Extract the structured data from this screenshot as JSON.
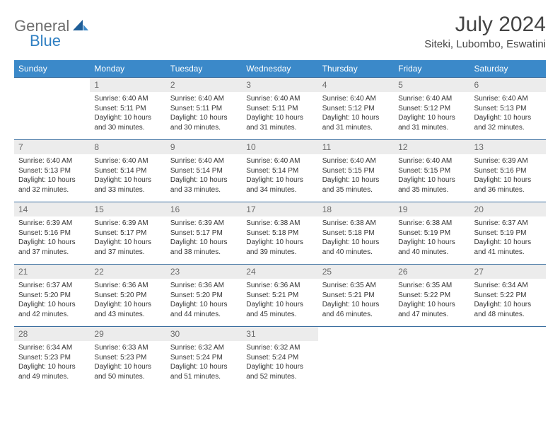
{
  "logo": {
    "text1": "General",
    "text2": "Blue"
  },
  "title": "July 2024",
  "location": "Siteki, Lubombo, Eswatini",
  "colors": {
    "header_bg": "#3b89c9",
    "header_text": "#ffffff",
    "daynum_bg": "#ececec",
    "daynum_text": "#6b6b6b",
    "row_border": "#3b6fa0",
    "logo_gray": "#6e6e6e",
    "logo_blue": "#2f7fc2"
  },
  "weekdays": [
    "Sunday",
    "Monday",
    "Tuesday",
    "Wednesday",
    "Thursday",
    "Friday",
    "Saturday"
  ],
  "weeks": [
    [
      null,
      {
        "d": "1",
        "sr": "Sunrise: 6:40 AM",
        "ss": "Sunset: 5:11 PM",
        "dl1": "Daylight: 10 hours",
        "dl2": "and 30 minutes."
      },
      {
        "d": "2",
        "sr": "Sunrise: 6:40 AM",
        "ss": "Sunset: 5:11 PM",
        "dl1": "Daylight: 10 hours",
        "dl2": "and 30 minutes."
      },
      {
        "d": "3",
        "sr": "Sunrise: 6:40 AM",
        "ss": "Sunset: 5:11 PM",
        "dl1": "Daylight: 10 hours",
        "dl2": "and 31 minutes."
      },
      {
        "d": "4",
        "sr": "Sunrise: 6:40 AM",
        "ss": "Sunset: 5:12 PM",
        "dl1": "Daylight: 10 hours",
        "dl2": "and 31 minutes."
      },
      {
        "d": "5",
        "sr": "Sunrise: 6:40 AM",
        "ss": "Sunset: 5:12 PM",
        "dl1": "Daylight: 10 hours",
        "dl2": "and 31 minutes."
      },
      {
        "d": "6",
        "sr": "Sunrise: 6:40 AM",
        "ss": "Sunset: 5:13 PM",
        "dl1": "Daylight: 10 hours",
        "dl2": "and 32 minutes."
      }
    ],
    [
      {
        "d": "7",
        "sr": "Sunrise: 6:40 AM",
        "ss": "Sunset: 5:13 PM",
        "dl1": "Daylight: 10 hours",
        "dl2": "and 32 minutes."
      },
      {
        "d": "8",
        "sr": "Sunrise: 6:40 AM",
        "ss": "Sunset: 5:14 PM",
        "dl1": "Daylight: 10 hours",
        "dl2": "and 33 minutes."
      },
      {
        "d": "9",
        "sr": "Sunrise: 6:40 AM",
        "ss": "Sunset: 5:14 PM",
        "dl1": "Daylight: 10 hours",
        "dl2": "and 33 minutes."
      },
      {
        "d": "10",
        "sr": "Sunrise: 6:40 AM",
        "ss": "Sunset: 5:14 PM",
        "dl1": "Daylight: 10 hours",
        "dl2": "and 34 minutes."
      },
      {
        "d": "11",
        "sr": "Sunrise: 6:40 AM",
        "ss": "Sunset: 5:15 PM",
        "dl1": "Daylight: 10 hours",
        "dl2": "and 35 minutes."
      },
      {
        "d": "12",
        "sr": "Sunrise: 6:40 AM",
        "ss": "Sunset: 5:15 PM",
        "dl1": "Daylight: 10 hours",
        "dl2": "and 35 minutes."
      },
      {
        "d": "13",
        "sr": "Sunrise: 6:39 AM",
        "ss": "Sunset: 5:16 PM",
        "dl1": "Daylight: 10 hours",
        "dl2": "and 36 minutes."
      }
    ],
    [
      {
        "d": "14",
        "sr": "Sunrise: 6:39 AM",
        "ss": "Sunset: 5:16 PM",
        "dl1": "Daylight: 10 hours",
        "dl2": "and 37 minutes."
      },
      {
        "d": "15",
        "sr": "Sunrise: 6:39 AM",
        "ss": "Sunset: 5:17 PM",
        "dl1": "Daylight: 10 hours",
        "dl2": "and 37 minutes."
      },
      {
        "d": "16",
        "sr": "Sunrise: 6:39 AM",
        "ss": "Sunset: 5:17 PM",
        "dl1": "Daylight: 10 hours",
        "dl2": "and 38 minutes."
      },
      {
        "d": "17",
        "sr": "Sunrise: 6:38 AM",
        "ss": "Sunset: 5:18 PM",
        "dl1": "Daylight: 10 hours",
        "dl2": "and 39 minutes."
      },
      {
        "d": "18",
        "sr": "Sunrise: 6:38 AM",
        "ss": "Sunset: 5:18 PM",
        "dl1": "Daylight: 10 hours",
        "dl2": "and 40 minutes."
      },
      {
        "d": "19",
        "sr": "Sunrise: 6:38 AM",
        "ss": "Sunset: 5:19 PM",
        "dl1": "Daylight: 10 hours",
        "dl2": "and 40 minutes."
      },
      {
        "d": "20",
        "sr": "Sunrise: 6:37 AM",
        "ss": "Sunset: 5:19 PM",
        "dl1": "Daylight: 10 hours",
        "dl2": "and 41 minutes."
      }
    ],
    [
      {
        "d": "21",
        "sr": "Sunrise: 6:37 AM",
        "ss": "Sunset: 5:20 PM",
        "dl1": "Daylight: 10 hours",
        "dl2": "and 42 minutes."
      },
      {
        "d": "22",
        "sr": "Sunrise: 6:36 AM",
        "ss": "Sunset: 5:20 PM",
        "dl1": "Daylight: 10 hours",
        "dl2": "and 43 minutes."
      },
      {
        "d": "23",
        "sr": "Sunrise: 6:36 AM",
        "ss": "Sunset: 5:20 PM",
        "dl1": "Daylight: 10 hours",
        "dl2": "and 44 minutes."
      },
      {
        "d": "24",
        "sr": "Sunrise: 6:36 AM",
        "ss": "Sunset: 5:21 PM",
        "dl1": "Daylight: 10 hours",
        "dl2": "and 45 minutes."
      },
      {
        "d": "25",
        "sr": "Sunrise: 6:35 AM",
        "ss": "Sunset: 5:21 PM",
        "dl1": "Daylight: 10 hours",
        "dl2": "and 46 minutes."
      },
      {
        "d": "26",
        "sr": "Sunrise: 6:35 AM",
        "ss": "Sunset: 5:22 PM",
        "dl1": "Daylight: 10 hours",
        "dl2": "and 47 minutes."
      },
      {
        "d": "27",
        "sr": "Sunrise: 6:34 AM",
        "ss": "Sunset: 5:22 PM",
        "dl1": "Daylight: 10 hours",
        "dl2": "and 48 minutes."
      }
    ],
    [
      {
        "d": "28",
        "sr": "Sunrise: 6:34 AM",
        "ss": "Sunset: 5:23 PM",
        "dl1": "Daylight: 10 hours",
        "dl2": "and 49 minutes."
      },
      {
        "d": "29",
        "sr": "Sunrise: 6:33 AM",
        "ss": "Sunset: 5:23 PM",
        "dl1": "Daylight: 10 hours",
        "dl2": "and 50 minutes."
      },
      {
        "d": "30",
        "sr": "Sunrise: 6:32 AM",
        "ss": "Sunset: 5:24 PM",
        "dl1": "Daylight: 10 hours",
        "dl2": "and 51 minutes."
      },
      {
        "d": "31",
        "sr": "Sunrise: 6:32 AM",
        "ss": "Sunset: 5:24 PM",
        "dl1": "Daylight: 10 hours",
        "dl2": "and 52 minutes."
      },
      null,
      null,
      null
    ]
  ]
}
